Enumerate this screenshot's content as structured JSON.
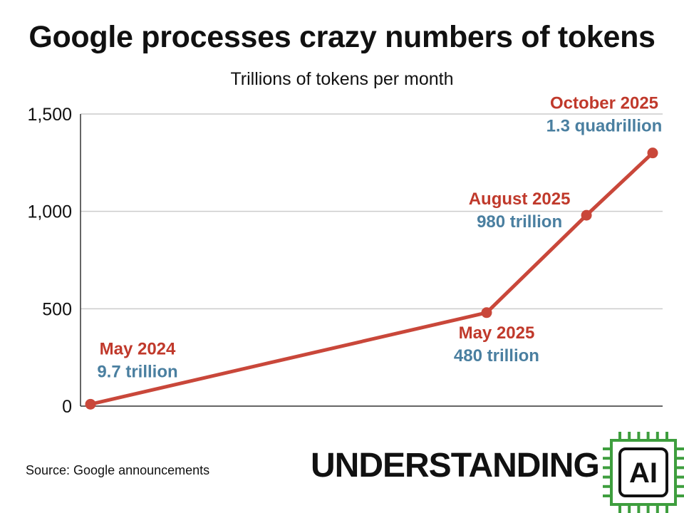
{
  "title": "Google processes crazy numbers of tokens",
  "subtitle": "Trillions of tokens per month",
  "source": "Source: Google announcements",
  "logo": {
    "text": "UNDERSTANDING",
    "chip_text": "AI"
  },
  "colors": {
    "line": "#C9473A",
    "date_label": "#C0392B",
    "value_label": "#4A7FA0",
    "logo_green": "#3E9E3E"
  },
  "chart_data": {
    "type": "line",
    "title": "Google processes crazy numbers of tokens",
    "subtitle": "Trillions of tokens per month",
    "ylabel": "",
    "ylim": [
      0,
      1500
    ],
    "yticks": [
      0,
      500,
      1000,
      1500
    ],
    "ytick_labels": [
      "0",
      "500",
      "1,000",
      "1,500"
    ],
    "xlim": [
      "2024-05-01",
      "2025-10-01"
    ],
    "grid": true,
    "series": [
      {
        "points": [
          {
            "date": "2024-05-01",
            "value": 9.7,
            "date_label": "May 2024",
            "value_label": "9.7 trillion"
          },
          {
            "date": "2025-05-01",
            "value": 480,
            "date_label": "May 2025",
            "value_label": "480 trillion"
          },
          {
            "date": "2025-08-01",
            "value": 980,
            "date_label": "August 2025",
            "value_label": "980 trillion"
          },
          {
            "date": "2025-10-01",
            "value": 1300,
            "date_label": "October 2025",
            "value_label": "1.3 quadrillion"
          }
        ]
      }
    ]
  }
}
